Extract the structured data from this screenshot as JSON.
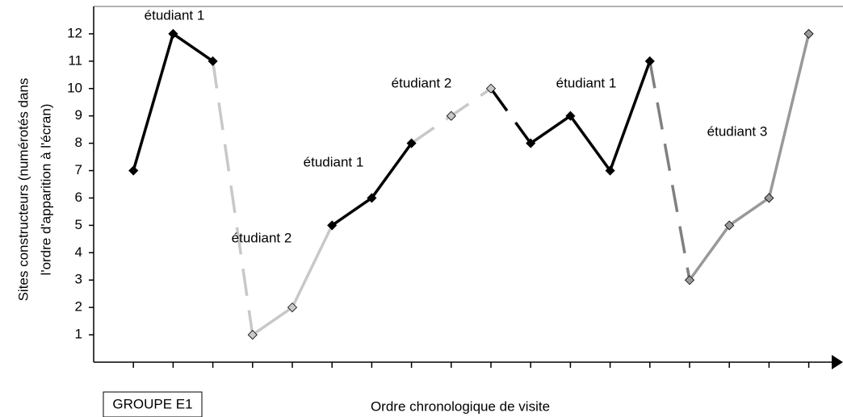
{
  "chart_data": {
    "type": "line",
    "x_label": "Ordre chronologique de visite",
    "y_label": [
      "Sites constructeurs (numérotés dans",
      "l'ordre d'apparition à l'écran)"
    ],
    "group_label": "GROUPE E1",
    "categories": [
      null,
      null,
      null,
      null,
      null,
      null,
      null,
      null,
      null,
      null,
      null,
      null,
      null,
      null,
      null,
      null,
      null,
      null
    ],
    "values": [
      7,
      12,
      11,
      1,
      2,
      5,
      6,
      8,
      9,
      10,
      8,
      9,
      7,
      11,
      3,
      5,
      6,
      12
    ],
    "marker_colors": [
      "#000000",
      "#000000",
      "#000000",
      "#c8c8c8",
      "#c8c8c8",
      "#000000",
      "#000000",
      "#000000",
      "#c8c8c8",
      "#c8c8c8",
      "#000000",
      "#000000",
      "#000000",
      "#000000",
      "#999999",
      "#999999",
      "#999999",
      "#999999"
    ],
    "segments": [
      {
        "start": 0,
        "end": 2,
        "color": "#000000",
        "dash": false
      },
      {
        "start": 2,
        "end": 3,
        "color": "#c8c8c8",
        "dash": true
      },
      {
        "start": 3,
        "end": 5,
        "color": "#c8c8c8",
        "dash": false
      },
      {
        "start": 5,
        "end": 7,
        "color": "#000000",
        "dash": false
      },
      {
        "start": 7,
        "end": 9,
        "color": "#c8c8c8",
        "dash": true
      },
      {
        "start": 9,
        "end": 10,
        "color": "#000000",
        "dash": true
      },
      {
        "start": 10,
        "end": 13,
        "color": "#000000",
        "dash": false
      },
      {
        "start": 13,
        "end": 14,
        "color": "#808080",
        "dash": true
      },
      {
        "start": 14,
        "end": 17,
        "color": "#999999",
        "dash": false
      }
    ],
    "annotations": [
      "étudiant 1",
      "étudiant 2",
      "étudiant 1",
      "étudiant 2",
      "étudiant 1",
      "étudiant 3"
    ],
    "ylim": [
      0,
      13
    ],
    "yticks": [
      1,
      2,
      3,
      4,
      5,
      6,
      7,
      8,
      9,
      10,
      11,
      12
    ],
    "grid": false
  }
}
